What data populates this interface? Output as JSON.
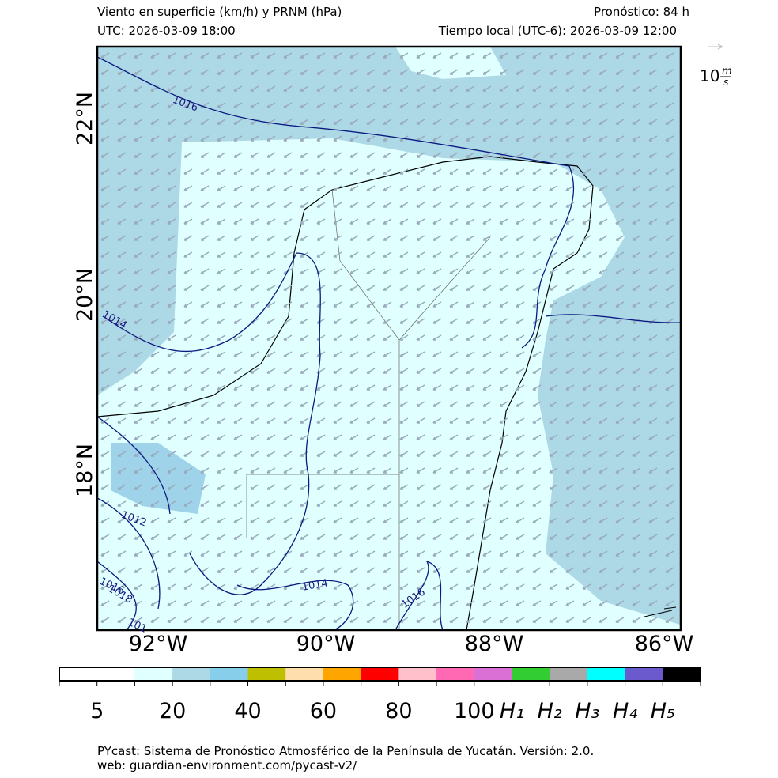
{
  "header": {
    "title": "Viento en superficie (km/h) y PRNM (hPa)",
    "forecast": "Pronóstico: 84 h",
    "utc": "UTC:  2026-03-09 18:00",
    "local": "Tiempo local (UTC-6): 2026-03-09 12:00"
  },
  "wind_key": {
    "label": "10",
    "unit_num": "m",
    "unit_den": "s"
  },
  "map": {
    "lat_labels": [
      "22°N",
      "20°N",
      "18°N"
    ],
    "lon_labels": [
      "92°W",
      "90°W",
      "88°W",
      "86°W"
    ],
    "isobar_labels": [
      "1016",
      "1014",
      "1012",
      "1018",
      "1016",
      "101",
      "1014",
      "1016"
    ]
  },
  "colorbar": {
    "colors": [
      "#ffffff",
      "#ffffff",
      "#e0ffff",
      "#add8e6",
      "#87ceeb",
      "#bdbf00",
      "#ffdead",
      "#ffa500",
      "#ff0000",
      "#ffc0cb",
      "#ff69b4",
      "#da70d6",
      "#32cd32",
      "#a9a9a9",
      "#00ffff",
      "#6a5acd",
      "#000000"
    ],
    "labels": [
      "5",
      "20",
      "40",
      "60",
      "80",
      "100",
      "H₁",
      "H₂",
      "H₃",
      "H₄",
      "H₅"
    ]
  },
  "footer": {
    "line1": "PYcast: Sistema de Pronóstico Atmosférico de la Península de Yucatán. Versión: 2.0.",
    "line2": "web: guardian-environment.com/pycast-v2/"
  }
}
